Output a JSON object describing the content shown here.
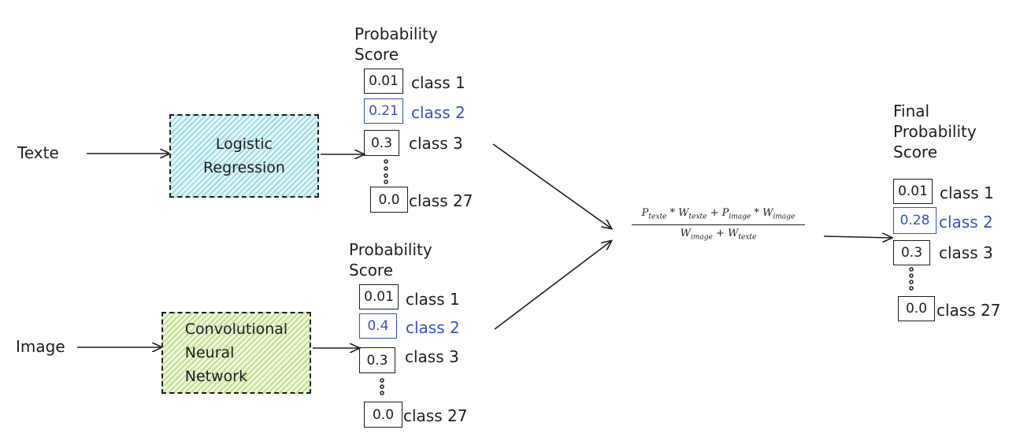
{
  "inputs": {
    "text_label": "Texte",
    "image_label": "Image"
  },
  "models": {
    "logistic_regression": "Logistic\nRegression",
    "cnn": "Convolutional\nNeural\nNetwork"
  },
  "text_scores": {
    "title": "Probability\nScore",
    "rows": [
      {
        "value": "0.01",
        "label": "class 1"
      },
      {
        "value": "0.21",
        "label": "class 2"
      },
      {
        "value": "0.3",
        "label": "class 3"
      },
      {
        "value": "0.0",
        "label": "class 27"
      }
    ]
  },
  "image_scores": {
    "title": "Probability\nScore",
    "rows": [
      {
        "value": "0.01",
        "label": "class 1"
      },
      {
        "value": "0.4",
        "label": "class 2"
      },
      {
        "value": "0.3",
        "label": "class 3"
      },
      {
        "value": "0.0",
        "label": "class 27"
      }
    ]
  },
  "formula": {
    "numerator": {
      "p1": "P",
      "p1_sub": "texte",
      "w1": "W",
      "w1_sub": "texte",
      "p2": "P",
      "p2_sub": "image",
      "w2": "W",
      "w2_sub": "image"
    },
    "denominator": {
      "w1": "W",
      "w1_sub": "image",
      "w2": "W",
      "w2_sub": "texte"
    }
  },
  "final_scores": {
    "title": "Final\nProbability\nScore",
    "rows": [
      {
        "value": "0.01",
        "label": "class 1"
      },
      {
        "value": "0.28",
        "label": "class 2"
      },
      {
        "value": "0.3",
        "label": "class 3"
      },
      {
        "value": "0.0",
        "label": "class 27"
      }
    ]
  },
  "colors": {
    "stroke": "#1e1e1e",
    "highlight": "#3b4fc4",
    "lr_fill": "#9bdde6",
    "cnn_fill": "#bfe089"
  }
}
